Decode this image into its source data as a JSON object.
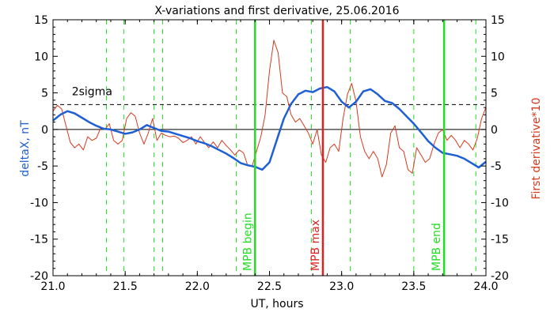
{
  "chart_data": {
    "type": "line",
    "title": "X-variations and first derivative, 25.06.2016",
    "xlabel": "UT, hours",
    "ylabel_left": "deltaX, nT",
    "ylabel_right": "First derivative*10",
    "xlim": [
      21.0,
      24.0
    ],
    "ylim": [
      -20,
      15
    ],
    "x_ticks": [
      "21.0",
      "21.5",
      "22.0",
      "22.5",
      "23.0",
      "23.5",
      "24.0"
    ],
    "x_tick_values": [
      21.0,
      21.5,
      22.0,
      22.5,
      23.0,
      23.5,
      24.0
    ],
    "y_ticks": [
      "15",
      "10",
      "5",
      "0",
      "-5",
      "-10",
      "-15",
      "-20"
    ],
    "y_tick_values": [
      15,
      10,
      5,
      0,
      -5,
      -10,
      -15,
      -20
    ],
    "colors": {
      "deltaX": "#1f5fd6",
      "derivative": "#d63a1f",
      "mpb_edge": "#22dd22",
      "mpb_max": "#dd2222"
    },
    "sigma": {
      "label": "2sigma",
      "value": 3.4
    },
    "zero_line": 0,
    "green_dashed_x": [
      21.37,
      21.49,
      21.7,
      21.76,
      22.27,
      22.79,
      23.06,
      23.5,
      23.93
    ],
    "markers": [
      {
        "label": "MPB begin",
        "x": 22.4,
        "color": "#22dd22"
      },
      {
        "label": "MPB max",
        "x": 22.87,
        "color": "#dd2222"
      },
      {
        "label": "MPB end",
        "x": 23.71,
        "color": "#22dd22"
      }
    ],
    "series": [
      {
        "key": "deltaX",
        "x": [
          21.0,
          21.05,
          21.1,
          21.15,
          21.2,
          21.25,
          21.3,
          21.35,
          21.4,
          21.45,
          21.5,
          21.55,
          21.6,
          21.65,
          21.7,
          21.75,
          21.8,
          21.85,
          21.9,
          21.95,
          22.0,
          22.05,
          22.1,
          22.15,
          22.2,
          22.25,
          22.3,
          22.35,
          22.4,
          22.45,
          22.5,
          22.55,
          22.6,
          22.65,
          22.7,
          22.75,
          22.8,
          22.85,
          22.9,
          22.95,
          23.0,
          23.05,
          23.1,
          23.15,
          23.2,
          23.25,
          23.3,
          23.35,
          23.4,
          23.45,
          23.5,
          23.55,
          23.6,
          23.65,
          23.7,
          23.75,
          23.8,
          23.85,
          23.9,
          23.95,
          24.0
        ],
        "y": [
          1.2,
          2.0,
          2.5,
          2.2,
          1.6,
          1.0,
          0.5,
          0.1,
          0.0,
          -0.3,
          -0.6,
          -0.4,
          0.0,
          0.6,
          0.2,
          -0.2,
          -0.3,
          -0.6,
          -0.9,
          -1.2,
          -1.6,
          -1.9,
          -2.3,
          -2.8,
          -3.3,
          -3.9,
          -4.6,
          -4.9,
          -5.1,
          -5.5,
          -4.5,
          -1.5,
          1.5,
          3.5,
          4.8,
          5.3,
          5.1,
          5.6,
          5.8,
          5.2,
          3.8,
          3.0,
          3.8,
          5.2,
          5.5,
          4.8,
          3.9,
          3.6,
          2.8,
          1.8,
          0.8,
          -0.4,
          -1.6,
          -2.5,
          -3.2,
          -3.4,
          -3.6,
          -4.0,
          -4.6,
          -5.2,
          -4.4
        ]
      },
      {
        "key": "derivative",
        "x": [
          21.0,
          21.03,
          21.06,
          21.09,
          21.12,
          21.15,
          21.18,
          21.21,
          21.24,
          21.27,
          21.3,
          21.33,
          21.36,
          21.39,
          21.42,
          21.45,
          21.48,
          21.51,
          21.54,
          21.57,
          21.6,
          21.63,
          21.66,
          21.69,
          21.72,
          21.75,
          21.78,
          21.81,
          21.84,
          21.87,
          21.9,
          21.93,
          21.96,
          21.99,
          22.02,
          22.05,
          22.08,
          22.11,
          22.14,
          22.17,
          22.2,
          22.23,
          22.26,
          22.29,
          22.32,
          22.35,
          22.38,
          22.41,
          22.44,
          22.47,
          22.5,
          22.53,
          22.56,
          22.59,
          22.62,
          22.65,
          22.68,
          22.71,
          22.74,
          22.77,
          22.8,
          22.83,
          22.86,
          22.89,
          22.92,
          22.95,
          22.98,
          23.01,
          23.04,
          23.07,
          23.1,
          23.13,
          23.16,
          23.19,
          23.22,
          23.25,
          23.28,
          23.31,
          23.34,
          23.37,
          23.4,
          23.43,
          23.46,
          23.49,
          23.52,
          23.55,
          23.58,
          23.61,
          23.64,
          23.67,
          23.7,
          23.73,
          23.76,
          23.79,
          23.82,
          23.85,
          23.88,
          23.91,
          23.94,
          23.97,
          24.0
        ],
        "y": [
          2.5,
          3.3,
          2.8,
          0.5,
          -1.8,
          -2.5,
          -2.0,
          -2.8,
          -1.0,
          -1.5,
          -1.2,
          0.2,
          0.0,
          0.8,
          -1.5,
          -2.0,
          -1.5,
          1.5,
          2.3,
          1.8,
          -0.5,
          -2.0,
          -0.5,
          1.5,
          -1.5,
          -0.5,
          -0.8,
          -1.0,
          -0.9,
          -1.2,
          -1.8,
          -1.5,
          -1.0,
          -2.0,
          -1.0,
          -1.8,
          -2.5,
          -1.7,
          -2.5,
          -1.5,
          -2.2,
          -2.8,
          -3.5,
          -2.8,
          -3.2,
          -5.0,
          -5.0,
          -3.0,
          -1.0,
          2.0,
          8.0,
          12.2,
          10.5,
          5.0,
          4.5,
          2.0,
          1.0,
          1.5,
          0.5,
          -0.5,
          -2.0,
          0.0,
          -3.5,
          -4.5,
          -2.5,
          -2.0,
          -3.0,
          1.5,
          4.8,
          6.3,
          3.8,
          -1.0,
          -3.0,
          -4.0,
          -3.0,
          -4.0,
          -6.5,
          -4.8,
          -0.5,
          0.5,
          -2.5,
          -3.0,
          -5.5,
          -6.0,
          -2.5,
          -3.5,
          -4.5,
          -4.0,
          -2.0,
          -0.5,
          0.0,
          -1.5,
          -0.8,
          -1.5,
          -2.5,
          -1.5,
          -2.0,
          -2.8,
          -1.2,
          1.5,
          3.0
        ]
      }
    ]
  }
}
